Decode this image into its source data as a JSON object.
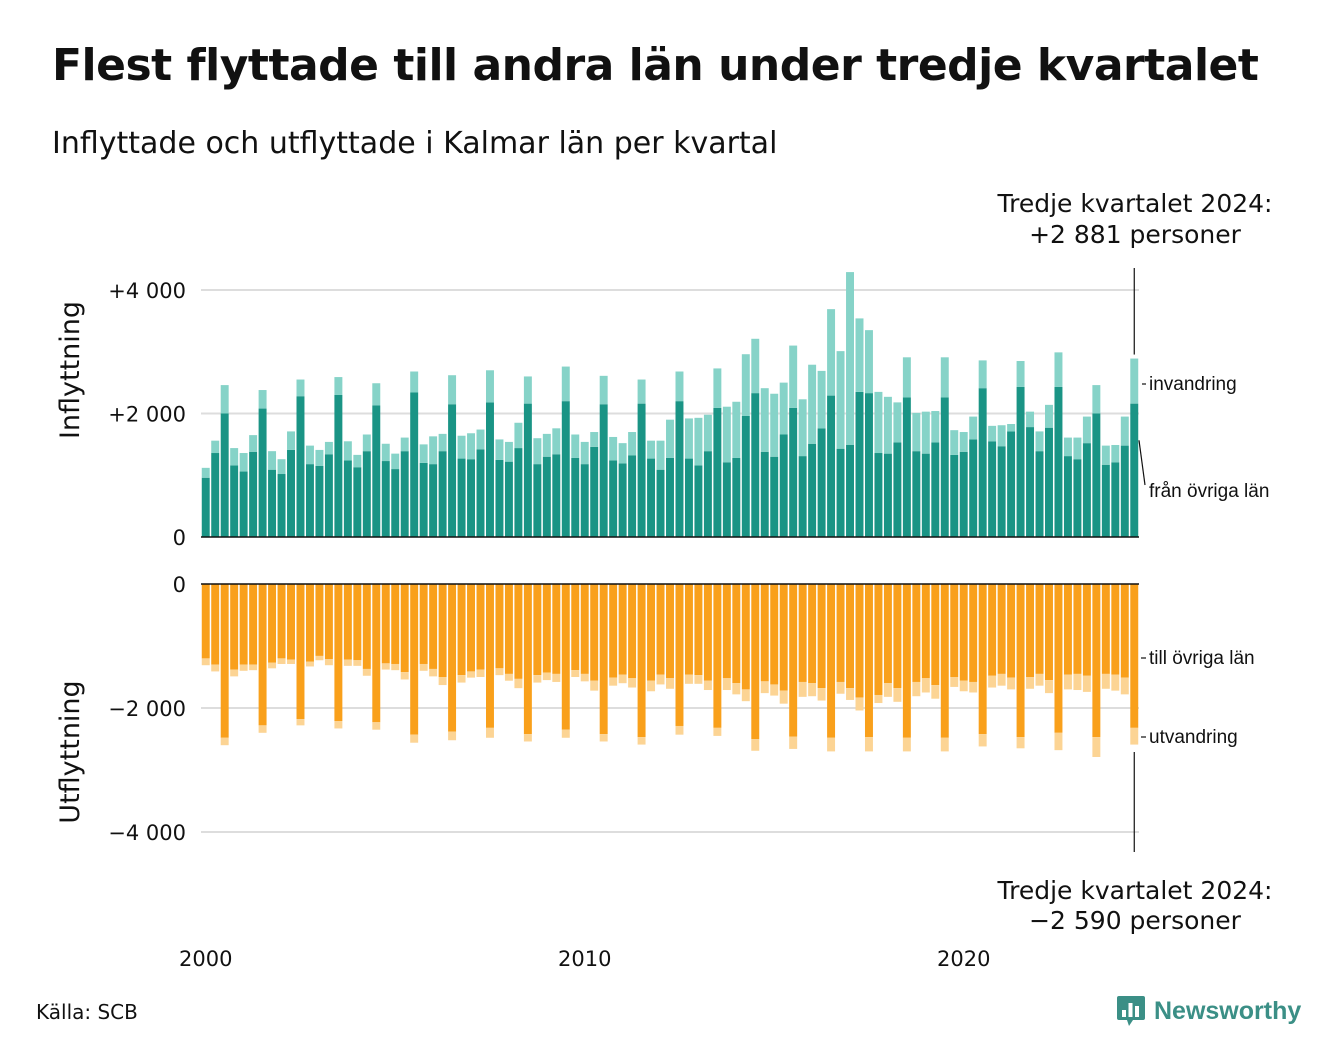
{
  "title": "Flest flyttade till andra län under tredje kvartalet",
  "subtitle": "Inflyttade och utflyttade i Kalmar län per kvartal",
  "source": "Källa: SCB",
  "brand": "Newsworthy",
  "colors": {
    "in_domestic": "#1a9485",
    "in_immigration": "#86d3c8",
    "out_domestic": "#f9a01b",
    "out_emigration": "#fcd494",
    "grid": "#dddddd",
    "brand": "#3b8f86"
  },
  "annotations": {
    "top": [
      "Tredje kvartalet 2024:",
      "+2 881 personer"
    ],
    "bottom": [
      "Tredje kvartalet 2024:",
      "−2 590 personer"
    ]
  },
  "chart_data": [
    {
      "type": "bar",
      "stacked": true,
      "ylabel": "Inflyttning",
      "ylim": [
        0,
        4300
      ],
      "yticks": [
        0,
        2000,
        4000
      ],
      "yticklabels": [
        "0",
        "+2 000",
        "+4 000"
      ],
      "xticklabels": [
        "2000",
        "2010",
        "2020"
      ],
      "series": [
        {
          "name": "från övriga län",
          "values": [
            960,
            1360,
            2000,
            1160,
            1060,
            1380,
            2080,
            1090,
            1020,
            1410,
            2280,
            1180,
            1150,
            1340,
            2300,
            1240,
            1130,
            1390,
            2130,
            1230,
            1100,
            1390,
            2340,
            1200,
            1180,
            1390,
            2150,
            1270,
            1260,
            1420,
            2180,
            1250,
            1220,
            1440,
            2160,
            1180,
            1300,
            1340,
            2200,
            1280,
            1180,
            1460,
            2150,
            1240,
            1190,
            1320,
            2160,
            1270,
            1090,
            1280,
            2200,
            1270,
            1160,
            1390,
            2090,
            1210,
            1280,
            1960,
            2330,
            1380,
            1300,
            1660,
            2090,
            1310,
            1510,
            1760,
            2290,
            1430,
            1490,
            2350,
            2330,
            1360,
            1350,
            1530,
            2260,
            1390,
            1350,
            1530,
            2260,
            1330,
            1380,
            1580,
            2410,
            1550,
            1470,
            1710,
            2430,
            1780,
            1390,
            1770,
            2430,
            1310,
            1260,
            1520,
            2000,
            1170,
            1210,
            1480,
            2160
          ]
        },
        {
          "name": "invandring",
          "values": [
            160,
            200,
            460,
            280,
            300,
            270,
            300,
            300,
            240,
            300,
            270,
            300,
            260,
            200,
            290,
            310,
            200,
            270,
            360,
            280,
            250,
            220,
            340,
            300,
            450,
            280,
            470,
            370,
            420,
            320,
            520,
            330,
            320,
            410,
            440,
            420,
            370,
            420,
            560,
            380,
            360,
            240,
            460,
            380,
            330,
            380,
            390,
            290,
            470,
            620,
            480,
            650,
            770,
            590,
            640,
            900,
            910,
            1000,
            880,
            1030,
            1020,
            840,
            1010,
            920,
            1280,
            930,
            1400,
            1580,
            2800,
            1190,
            1020,
            990,
            920,
            650,
            650,
            620,
            680,
            510,
            650,
            400,
            320,
            370,
            450,
            250,
            340,
            120,
            420,
            250,
            320,
            370,
            560,
            300,
            350,
            430,
            460,
            310,
            280,
            470,
            730
          ]
        }
      ]
    },
    {
      "type": "bar",
      "stacked": true,
      "ylabel": "Utflyttning",
      "ylim": [
        -5000,
        0
      ],
      "yticks": [
        0,
        -2000,
        -4000
      ],
      "yticklabels": [
        "0",
        "−2 000",
        "−4 000"
      ],
      "series": [
        {
          "name": "till övriga län",
          "values": [
            -1200,
            -1300,
            -2480,
            -1380,
            -1300,
            -1300,
            -2280,
            -1270,
            -1200,
            -1220,
            -2180,
            -1250,
            -1160,
            -1210,
            -2210,
            -1220,
            -1230,
            -1370,
            -2230,
            -1280,
            -1290,
            -1420,
            -2430,
            -1290,
            -1370,
            -1500,
            -2380,
            -1470,
            -1410,
            -1380,
            -2320,
            -1360,
            -1450,
            -1530,
            -2420,
            -1470,
            -1430,
            -1450,
            -2350,
            -1390,
            -1450,
            -1560,
            -2420,
            -1510,
            -1460,
            -1520,
            -2470,
            -1560,
            -1460,
            -1520,
            -2290,
            -1460,
            -1470,
            -1560,
            -2320,
            -1520,
            -1600,
            -1700,
            -2500,
            -1570,
            -1620,
            -1720,
            -2460,
            -1580,
            -1600,
            -1680,
            -2480,
            -1580,
            -1680,
            -1830,
            -2470,
            -1790,
            -1600,
            -1680,
            -2480,
            -1580,
            -1520,
            -1630,
            -2480,
            -1500,
            -1560,
            -1580,
            -2420,
            -1480,
            -1450,
            -1510,
            -2470,
            -1500,
            -1450,
            -1550,
            -2400,
            -1460,
            -1450,
            -1480,
            -2470,
            -1450,
            -1460,
            -1510,
            -2320
          ]
        },
        {
          "name": "utvandring",
          "values": [
            -110,
            -110,
            -120,
            -110,
            -100,
            -90,
            -120,
            -90,
            -90,
            -70,
            -100,
            -80,
            -70,
            -100,
            -120,
            -100,
            -90,
            -110,
            -120,
            -100,
            -100,
            -120,
            -130,
            -110,
            -120,
            -130,
            -140,
            -120,
            -100,
            -120,
            -160,
            -110,
            -110,
            -150,
            -120,
            -120,
            -120,
            -130,
            -130,
            -110,
            -120,
            -160,
            -120,
            -130,
            -140,
            -150,
            -120,
            -170,
            -160,
            -170,
            -140,
            -150,
            -140,
            -150,
            -130,
            -190,
            -180,
            -190,
            -190,
            -190,
            -180,
            -210,
            -200,
            -240,
            -210,
            -200,
            -220,
            -190,
            -190,
            -210,
            -230,
            -130,
            -220,
            -220,
            -220,
            -230,
            -230,
            -220,
            -220,
            -160,
            -170,
            -170,
            -200,
            -190,
            -190,
            -190,
            -180,
            -190,
            -190,
            -210,
            -280,
            -240,
            -260,
            -260,
            -320,
            -240,
            -260,
            -270,
            -270
          ]
        }
      ]
    }
  ]
}
